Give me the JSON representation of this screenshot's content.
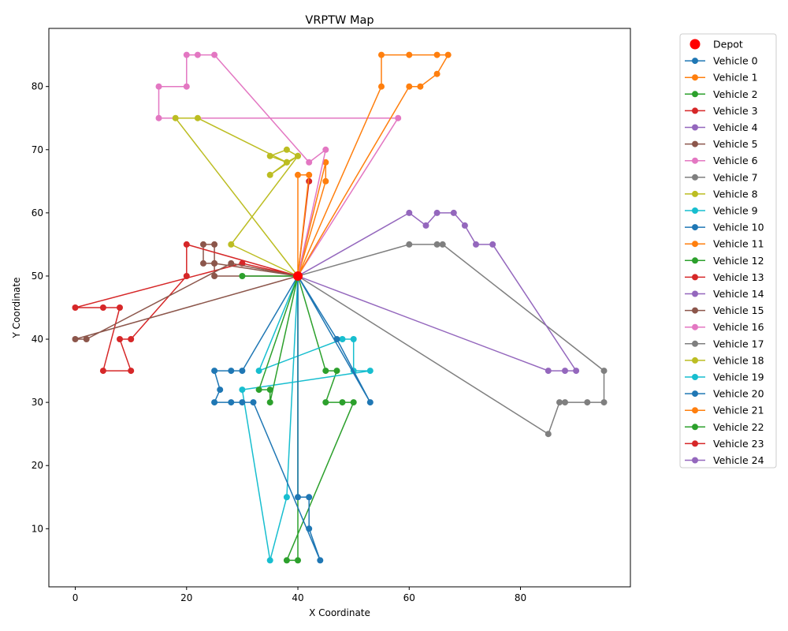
{
  "chart_data": {
    "type": "line",
    "title": "VRPTW Map",
    "xlabel": "X Coordinate",
    "ylabel": "Y Coordinate",
    "xlim": [
      -4.75,
      99.75
    ],
    "ylim": [
      0.8,
      89.2
    ],
    "xticks": [
      0,
      20,
      40,
      60,
      80
    ],
    "yticks": [
      10,
      20,
      30,
      40,
      50,
      60,
      70,
      80
    ],
    "grid": false,
    "legend_position": "outside-right",
    "depot": {
      "name": "Depot",
      "x": 40,
      "y": 50,
      "color": "#ff0000"
    },
    "series": [
      {
        "name": "Vehicle 0",
        "color": "#1f77b4",
        "points": [
          [
            40,
            50
          ],
          [
            40,
            50
          ]
        ]
      },
      {
        "name": "Vehicle 1",
        "color": "#ff7f0e",
        "points": [
          [
            40,
            50
          ],
          [
            45,
            65
          ],
          [
            45,
            68
          ],
          [
            40,
            50
          ]
        ]
      },
      {
        "name": "Vehicle 2",
        "color": "#2ca02c",
        "points": [
          [
            40,
            50
          ],
          [
            45,
            35
          ],
          [
            47,
            35
          ],
          [
            45,
            30
          ],
          [
            48,
            30
          ],
          [
            50,
            30
          ],
          [
            38,
            5
          ],
          [
            40,
            5
          ],
          [
            40,
            50
          ]
        ]
      },
      {
        "name": "Vehicle 3",
        "color": "#d62728",
        "points": [
          [
            40,
            50
          ],
          [
            42,
            65
          ],
          [
            40,
            50
          ]
        ]
      },
      {
        "name": "Vehicle 4",
        "color": "#9467bd",
        "points": [
          [
            40,
            50
          ],
          [
            40,
            50
          ]
        ]
      },
      {
        "name": "Vehicle 5",
        "color": "#8c564b",
        "points": [
          [
            40,
            50
          ],
          [
            25,
            52
          ],
          [
            23,
            52
          ],
          [
            23,
            55
          ],
          [
            25,
            55
          ],
          [
            25,
            52
          ],
          [
            25,
            50
          ],
          [
            40,
            50
          ]
        ]
      },
      {
        "name": "Vehicle 6",
        "color": "#e377c2",
        "points": [
          [
            40,
            50
          ],
          [
            45,
            70
          ],
          [
            42,
            68
          ],
          [
            25,
            85
          ],
          [
            22,
            85
          ],
          [
            20,
            85
          ],
          [
            20,
            80
          ],
          [
            15,
            80
          ],
          [
            15,
            75
          ],
          [
            58,
            75
          ],
          [
            40,
            50
          ]
        ]
      },
      {
        "name": "Vehicle 7",
        "color": "#7f7f7f",
        "points": [
          [
            40,
            50
          ],
          [
            60,
            55
          ],
          [
            65,
            55
          ],
          [
            66,
            55
          ],
          [
            95,
            35
          ],
          [
            95,
            30
          ],
          [
            92,
            30
          ],
          [
            88,
            30
          ],
          [
            87,
            30
          ],
          [
            85,
            25
          ],
          [
            40,
            50
          ]
        ]
      },
      {
        "name": "Vehicle 8",
        "color": "#bcbd22",
        "points": [
          [
            40,
            50
          ],
          [
            28,
            55
          ],
          [
            40,
            69
          ],
          [
            38,
            70
          ],
          [
            35,
            69
          ],
          [
            38,
            68
          ],
          [
            35,
            66
          ],
          [
            40,
            69
          ],
          [
            38,
            68
          ],
          [
            22,
            75
          ],
          [
            18,
            75
          ],
          [
            40,
            50
          ]
        ]
      },
      {
        "name": "Vehicle 9",
        "color": "#17becf",
        "points": [
          [
            40,
            50
          ],
          [
            33,
            35
          ],
          [
            48,
            40
          ],
          [
            50,
            40
          ],
          [
            50,
            35
          ],
          [
            53,
            35
          ],
          [
            30,
            32
          ],
          [
            35,
            5
          ],
          [
            38,
            15
          ],
          [
            40,
            50
          ]
        ]
      },
      {
        "name": "Vehicle 10",
        "color": "#1f77b4",
        "points": [
          [
            40,
            50
          ],
          [
            30,
            35
          ],
          [
            28,
            35
          ],
          [
            25,
            35
          ],
          [
            26,
            32
          ],
          [
            25,
            30
          ],
          [
            28,
            30
          ],
          [
            30,
            30
          ],
          [
            32,
            30
          ],
          [
            44,
            5
          ],
          [
            42,
            10
          ],
          [
            42,
            15
          ],
          [
            40,
            15
          ],
          [
            40,
            50
          ]
        ]
      },
      {
        "name": "Vehicle 11",
        "color": "#ff7f0e",
        "points": [
          [
            40,
            50
          ],
          [
            55,
            80
          ],
          [
            55,
            85
          ],
          [
            60,
            85
          ],
          [
            65,
            85
          ],
          [
            67,
            85
          ],
          [
            65,
            82
          ],
          [
            62,
            80
          ],
          [
            60,
            80
          ],
          [
            40,
            50
          ]
        ]
      },
      {
        "name": "Vehicle 12",
        "color": "#2ca02c",
        "points": [
          [
            40,
            50
          ],
          [
            30,
            50
          ],
          [
            40,
            50
          ]
        ]
      },
      {
        "name": "Vehicle 13",
        "color": "#d62728",
        "points": [
          [
            40,
            50
          ],
          [
            20,
            55
          ],
          [
            20,
            50
          ],
          [
            10,
            40
          ],
          [
            8,
            40
          ],
          [
            10,
            35
          ],
          [
            5,
            35
          ],
          [
            8,
            45
          ],
          [
            5,
            45
          ],
          [
            0,
            45
          ],
          [
            30,
            52
          ],
          [
            40,
            50
          ]
        ]
      },
      {
        "name": "Vehicle 14",
        "color": "#9467bd",
        "points": [
          [
            40,
            50
          ],
          [
            60,
            60
          ],
          [
            63,
            58
          ],
          [
            65,
            60
          ],
          [
            68,
            60
          ],
          [
            70,
            58
          ],
          [
            72,
            55
          ],
          [
            75,
            55
          ],
          [
            90,
            35
          ],
          [
            88,
            35
          ],
          [
            85,
            35
          ],
          [
            40,
            50
          ]
        ]
      },
      {
        "name": "Vehicle 15",
        "color": "#8c564b",
        "points": [
          [
            40,
            50
          ],
          [
            28,
            52
          ],
          [
            2,
            40
          ],
          [
            0,
            40
          ],
          [
            40,
            50
          ]
        ]
      },
      {
        "name": "Vehicle 16",
        "color": "#e377c2",
        "points": [
          [
            40,
            50
          ],
          [
            40,
            50
          ]
        ]
      },
      {
        "name": "Vehicle 17",
        "color": "#7f7f7f",
        "points": [
          [
            40,
            50
          ],
          [
            40,
            50
          ]
        ]
      },
      {
        "name": "Vehicle 18",
        "color": "#bcbd22",
        "points": [
          [
            40,
            50
          ],
          [
            40,
            50
          ]
        ]
      },
      {
        "name": "Vehicle 19",
        "color": "#17becf",
        "points": [
          [
            40,
            50
          ],
          [
            40,
            50
          ]
        ]
      },
      {
        "name": "Vehicle 20",
        "color": "#1f77b4",
        "points": [
          [
            40,
            50
          ],
          [
            47,
            40
          ],
          [
            53,
            30
          ],
          [
            40,
            50
          ]
        ]
      },
      {
        "name": "Vehicle 21",
        "color": "#ff7f0e",
        "points": [
          [
            40,
            50
          ],
          [
            40,
            66
          ],
          [
            42,
            66
          ],
          [
            40,
            50
          ]
        ]
      },
      {
        "name": "Vehicle 22",
        "color": "#2ca02c",
        "points": [
          [
            40,
            50
          ],
          [
            33,
            32
          ],
          [
            35,
            32
          ],
          [
            35,
            30
          ],
          [
            40,
            50
          ]
        ]
      },
      {
        "name": "Vehicle 23",
        "color": "#d62728",
        "points": [
          [
            40,
            50
          ],
          [
            40,
            50
          ]
        ]
      },
      {
        "name": "Vehicle 24",
        "color": "#9467bd",
        "points": [
          [
            40,
            50
          ],
          [
            40,
            50
          ]
        ]
      }
    ]
  }
}
